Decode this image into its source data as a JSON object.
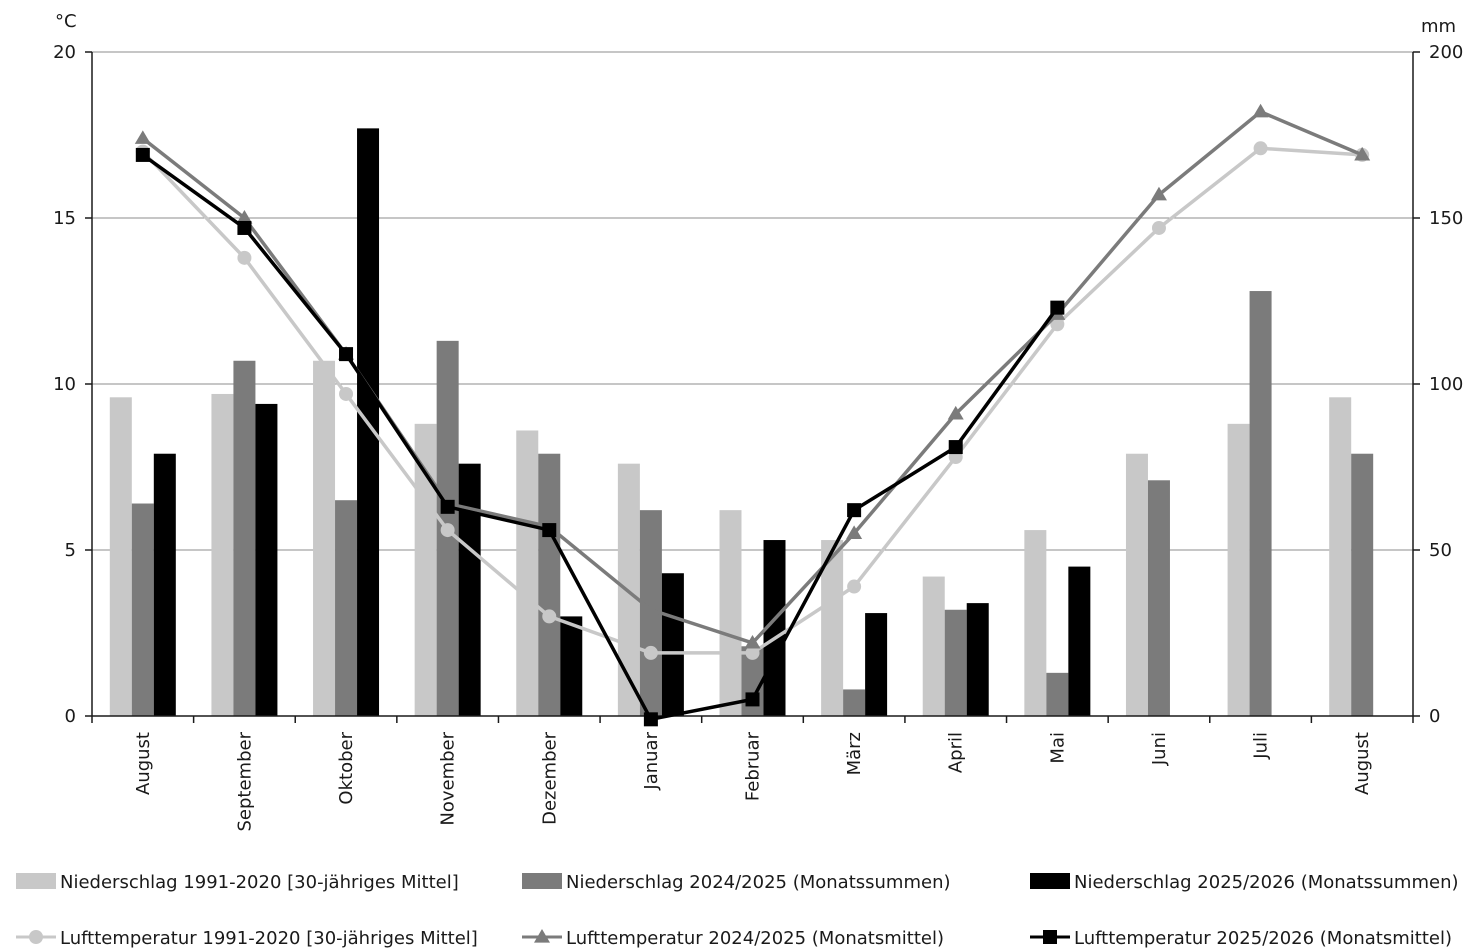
{
  "chart_data": {
    "type": "bar",
    "categories": [
      "August",
      "September",
      "Oktober",
      "November",
      "Dezember",
      "Januar",
      "Februar",
      "März",
      "April",
      "Mai",
      "Juni",
      "Juli",
      "August"
    ],
    "left_axis": {
      "unit": "°C",
      "ylim": [
        0,
        20
      ],
      "ticks": [
        "0",
        "5",
        "10",
        "15",
        "20"
      ]
    },
    "right_axis": {
      "unit": "mm",
      "ylim": [
        0,
        200
      ],
      "ticks": [
        "0",
        "50",
        "100",
        "150",
        "200"
      ]
    },
    "grid": true,
    "legend_position": "bottom",
    "colors": {
      "light": "#c8c8c8",
      "mid": "#7b7b7b",
      "dark": "#000000"
    },
    "bar_series": [
      {
        "name": "Niederschlag 1991-2020 [30-jähriges Mittel]",
        "axis": "right",
        "color": "#c8c8c8",
        "values": [
          96,
          97,
          107,
          88,
          86,
          76,
          62,
          53,
          42,
          56,
          79,
          88,
          96
        ]
      },
      {
        "name": "Niederschlag 2024/2025 (Monatssummen)",
        "axis": "right",
        "color": "#7b7b7b",
        "values": [
          64,
          107,
          65,
          113,
          79,
          62,
          21,
          8,
          32,
          13,
          71,
          128,
          79
        ]
      },
      {
        "name": "Niederschlag 2025/2026 (Monatssummen)",
        "axis": "right",
        "color": "#000000",
        "values": [
          79,
          94,
          177,
          76,
          30,
          43,
          53,
          31,
          34,
          45,
          null,
          null,
          null
        ]
      }
    ],
    "line_series": [
      {
        "name": "Lufttemperatur 1991-2020 [30-jähriges Mittel]",
        "axis": "left",
        "color": "#c8c8c8",
        "marker": "circle",
        "values": [
          17.0,
          13.8,
          9.7,
          5.6,
          3.0,
          1.9,
          1.9,
          3.9,
          7.8,
          11.8,
          14.7,
          17.1,
          16.9
        ]
      },
      {
        "name": "Lufttemperatur 2024/2025 (Monatsmittel)",
        "axis": "left",
        "color": "#7b7b7b",
        "marker": "triangle",
        "values": [
          17.4,
          15.0,
          10.9,
          6.4,
          5.7,
          3.2,
          2.2,
          5.5,
          9.1,
          12.1,
          15.7,
          18.2,
          16.9
        ]
      },
      {
        "name": "Lufttemperatur 2025/2026 (Monatsmittel)",
        "axis": "left",
        "color": "#000000",
        "marker": "square",
        "values": [
          16.9,
          14.7,
          10.9,
          6.3,
          5.6,
          -0.1,
          0.5,
          6.2,
          8.1,
          12.3,
          null,
          null,
          null
        ]
      }
    ]
  }
}
